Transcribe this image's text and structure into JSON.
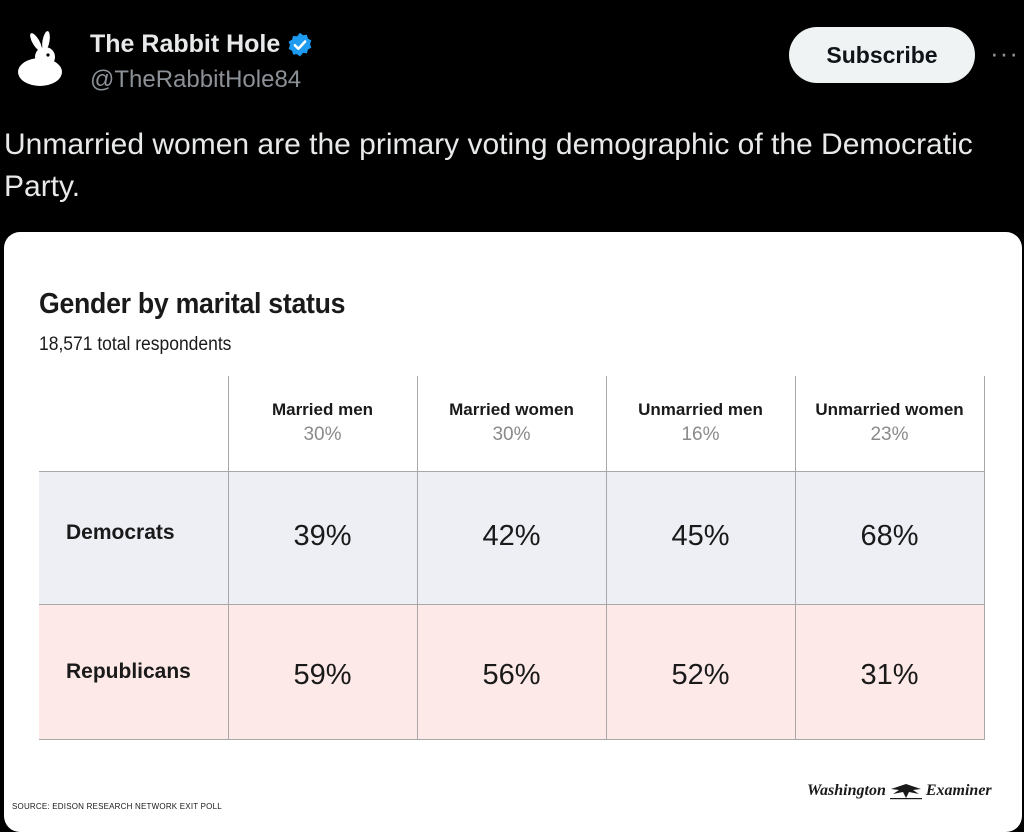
{
  "author": {
    "name": "The Rabbit Hole",
    "handle": "@TheRabbitHole84"
  },
  "header": {
    "subscribe_label": "Subscribe",
    "more_glyph": "···"
  },
  "tweet": {
    "text": "Unmarried women are the primary voting demographic of the Democratic Party."
  },
  "card": {
    "title": "Gender by marital status",
    "subtitle": "18,571 total respondents",
    "source": "SOURCE: EDISON RESEARCH NETWORK EXIT POLL",
    "logo": {
      "left": "Washington",
      "right": "Examiner"
    }
  },
  "chart_data": {
    "type": "table",
    "title": "Gender by marital status",
    "subtitle": "18,571 total respondents",
    "columns": [
      {
        "name": "Married men",
        "share": "30%"
      },
      {
        "name": "Married women",
        "share": "30%"
      },
      {
        "name": "Unmarried men",
        "share": "16%"
      },
      {
        "name": "Unmarried women",
        "share": "23%"
      }
    ],
    "rows": [
      {
        "label": "Democrats",
        "values": [
          "39%",
          "42%",
          "45%",
          "68%"
        ]
      },
      {
        "label": "Republicans",
        "values": [
          "59%",
          "56%",
          "52%",
          "31%"
        ]
      }
    ]
  },
  "colors": {
    "background": "#000000",
    "democrats_row": "#edeff5",
    "republicans_row": "#fde9e8",
    "verified": "#1d9bf0"
  },
  "icons": {
    "avatar": "rabbit-icon",
    "verified": "verified-badge-icon",
    "more": "more-icon"
  }
}
